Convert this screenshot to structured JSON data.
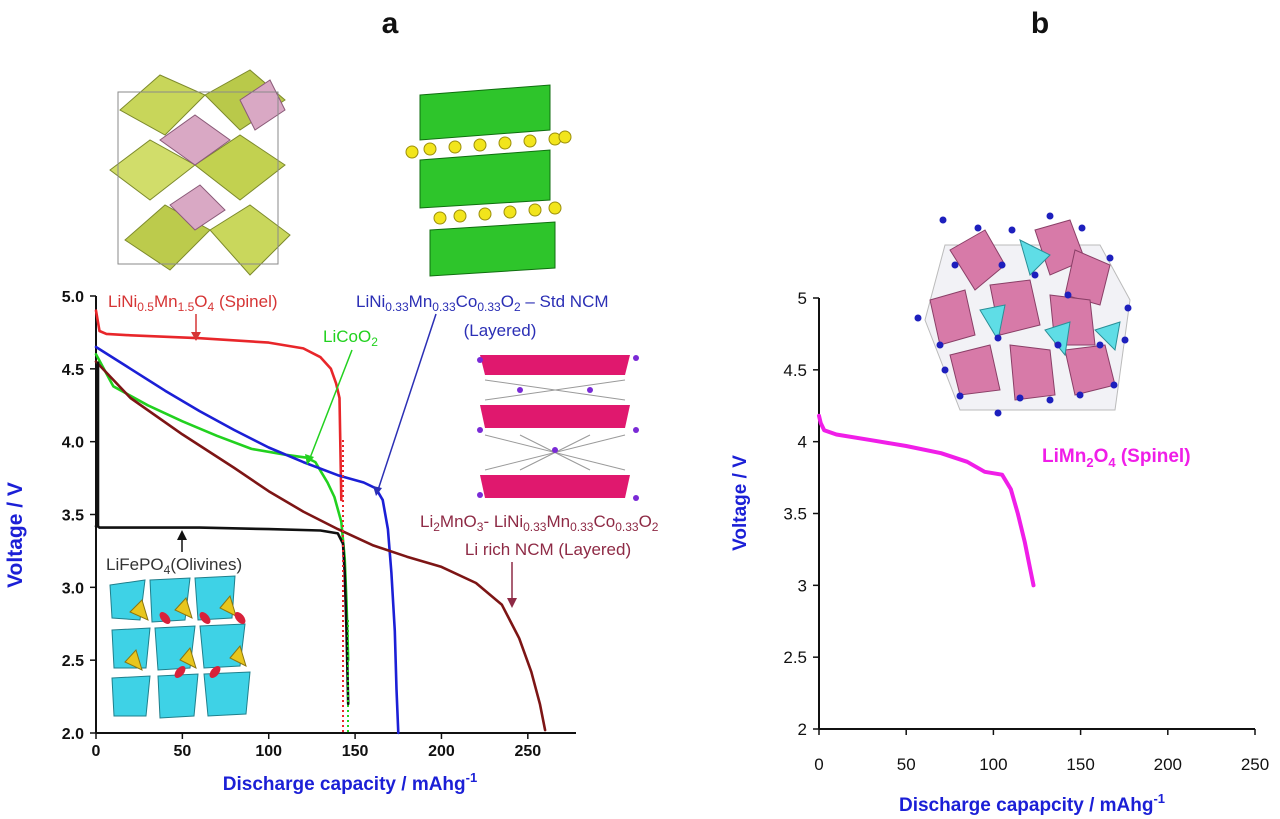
{
  "panels": [
    {
      "label": "a",
      "type": "line",
      "xlabel": "Discharge capacity / mAhg",
      "xlabel_sup": "-1",
      "ylabel": "Voltage / V",
      "xlim": [
        0,
        275
      ],
      "ylim": [
        2.0,
        5.0
      ],
      "xticks": [
        "0",
        "50",
        "100",
        "150",
        "200",
        "250"
      ],
      "yticks": [
        "2.0",
        "2.5",
        "3.0",
        "3.5",
        "4.0",
        "4.5",
        "5.0"
      ],
      "series": [
        {
          "name": "LiNi0.5Mn1.5O4 (Spinel)",
          "color": "#e8262a",
          "x": [
            0,
            2,
            6,
            20,
            60,
            100,
            120,
            130,
            136,
            139,
            141,
            142
          ],
          "y": [
            4.9,
            4.76,
            4.74,
            4.73,
            4.71,
            4.68,
            4.64,
            4.58,
            4.5,
            4.4,
            4.3,
            3.6
          ]
        },
        {
          "name": "LiCoO2",
          "color": "#22d11f",
          "x": [
            0,
            10,
            30,
            50,
            70,
            90,
            110,
            122,
            127,
            130,
            134,
            138,
            142,
            144,
            145,
            146
          ],
          "y": [
            4.6,
            4.38,
            4.25,
            4.14,
            4.04,
            3.95,
            3.91,
            3.89,
            3.86,
            3.8,
            3.72,
            3.62,
            3.45,
            3.2,
            2.9,
            2.5
          ]
        },
        {
          "name": "LiNi0.33Mn0.33Co0.33O2 – Std NCM (Layered)",
          "color": "#1b1fd6",
          "x": [
            0,
            20,
            40,
            60,
            80,
            100,
            120,
            140,
            155,
            162,
            166,
            169,
            171,
            173,
            174,
            175
          ],
          "y": [
            4.65,
            4.5,
            4.35,
            4.21,
            4.08,
            3.96,
            3.86,
            3.77,
            3.72,
            3.68,
            3.6,
            3.4,
            3.1,
            2.7,
            2.3,
            2.0
          ]
        },
        {
          "name": "Li2MnO3- LiNi0.33Mn0.33Co0.33O2 Li rich NCM (Layered)",
          "color": "#7d1515",
          "x": [
            0,
            20,
            50,
            80,
            100,
            120,
            140,
            160,
            180,
            200,
            220,
            235,
            245,
            252,
            257,
            260
          ],
          "y": [
            4.55,
            4.3,
            4.05,
            3.82,
            3.66,
            3.52,
            3.4,
            3.29,
            3.21,
            3.14,
            3.03,
            2.88,
            2.65,
            2.42,
            2.2,
            2.02
          ]
        },
        {
          "name": "LiFePO4 (Olivines)",
          "color": "#111111",
          "x": [
            0,
            1,
            2,
            5,
            20,
            60,
            100,
            130,
            140,
            143,
            144,
            145,
            146
          ],
          "y": [
            3.42,
            3.42,
            3.41,
            3.41,
            3.41,
            3.41,
            3.4,
            3.39,
            3.37,
            3.3,
            3.1,
            2.7,
            2.2
          ]
        }
      ],
      "labels": {
        "spinel_pre": "LiNi",
        "spinel_s1": "0.5",
        "spinel_mid": "Mn",
        "spinel_s2": "1.5",
        "spinel_o": "O",
        "spinel_s3": "4",
        "spinel_post": " (Spinel)",
        "lco_pre": "LiCoO",
        "lco_sub": "2",
        "ncm_pre": "LiNi",
        "ncm_s1": "0.33",
        "ncm_mn": "Mn",
        "ncm_s2": "0.33",
        "ncm_co": "Co",
        "ncm_s3": "0.33",
        "ncm_o": "O",
        "ncm_s4": "2",
        "ncm_post": " – Std NCM",
        "ncm_line2": "(Layered)",
        "lr_li": "Li",
        "lr_s1": "2",
        "lr_mno": "MnO",
        "lr_s2": "3",
        "lr_mid": "- LiNi",
        "lr_s3": "0.33",
        "lr_mn": "Mn",
        "lr_s4": "0.33",
        "lr_co": "Co",
        "lr_s5": "0.33",
        "lr_o": "O",
        "lr_s6": "2",
        "lr_line2": "Li rich NCM (Layered)",
        "lfp_pre": "LiFePO",
        "lfp_sub": "4",
        "lfp_post": "(Olivines)"
      }
    },
    {
      "label": "b",
      "type": "line",
      "xlabel": "Discharge capapcity / mAhg",
      "xlabel_sup": "-1",
      "ylabel": "Voltage / V",
      "xlim": [
        0,
        250
      ],
      "ylim": [
        2,
        5
      ],
      "xticks": [
        "0",
        "50",
        "100",
        "150",
        "200",
        "250"
      ],
      "yticks": [
        "2",
        "2.5",
        "3",
        "3.5",
        "4",
        "4.5",
        "5"
      ],
      "series": [
        {
          "name": "LiMn2O4 (Spinel)",
          "color": "#f01ee8",
          "x": [
            0,
            1,
            3,
            10,
            30,
            50,
            70,
            85,
            95,
            105,
            110,
            114,
            118,
            121,
            123
          ],
          "y": [
            4.18,
            4.13,
            4.08,
            4.05,
            4.01,
            3.97,
            3.92,
            3.86,
            3.79,
            3.77,
            3.67,
            3.5,
            3.3,
            3.12,
            3.0
          ]
        }
      ],
      "labels": {
        "lmo_pre": "LiMn",
        "lmo_s1": "2",
        "lmo_o": "O",
        "lmo_s2": "4",
        "lmo_post": " (Spinel)"
      }
    }
  ],
  "colors": {
    "axis": "#111111",
    "axis_label": "#1b1fd6",
    "tick_label": "#111111",
    "spinel_label": "#d63535",
    "lco_label": "#22d11f",
    "ncm_label": "#2b2fb5",
    "lr_label": "#8e2a45",
    "lfp_label": "#333333",
    "lmo_label": "#f01ee8"
  }
}
